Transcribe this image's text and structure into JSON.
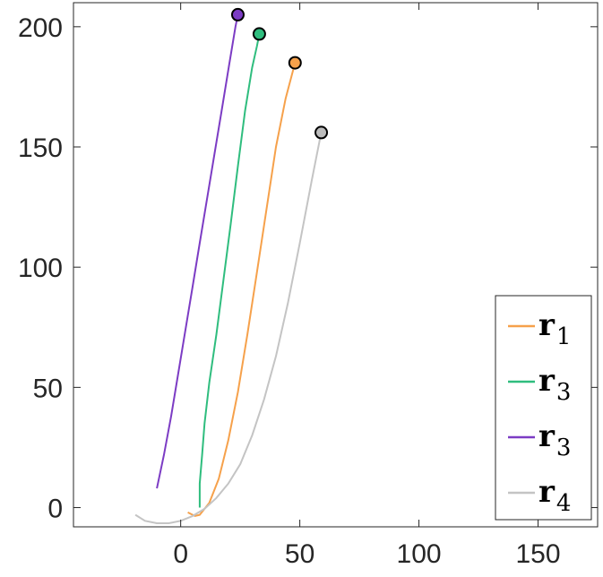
{
  "chart_data": {
    "type": "line",
    "title": "",
    "xlabel": "",
    "ylabel": "",
    "xlim": [
      -45,
      175
    ],
    "ylim": [
      -8,
      210
    ],
    "xticks": [
      0,
      50,
      100,
      150
    ],
    "yticks": [
      0,
      50,
      100,
      150,
      200
    ],
    "grid": false,
    "legend_position": "bottom-right",
    "series": [
      {
        "name": "r",
        "subscript": "1",
        "color": "#f6a14b",
        "x": [
          3,
          5,
          6,
          8,
          12,
          16,
          20,
          24,
          28,
          32,
          36,
          40,
          44,
          48
        ],
        "y": [
          -2,
          -3,
          -3.5,
          -3,
          2,
          12,
          28,
          48,
          72,
          98,
          124,
          150,
          170,
          185
        ]
      },
      {
        "name": "r",
        "subscript": "3",
        "color": "#2fbd7e",
        "x": [
          8,
          8,
          9,
          10,
          12,
          15,
          18,
          21,
          24,
          27,
          30,
          32,
          33
        ],
        "y": [
          0,
          10,
          22,
          35,
          52,
          72,
          95,
          118,
          142,
          165,
          183,
          192,
          197
        ]
      },
      {
        "name": "r",
        "subscript": "3",
        "color": "#7c3cc4",
        "x": [
          -10,
          -7,
          -4,
          -1,
          2,
          5,
          8,
          11,
          14,
          17,
          20,
          23,
          24
        ],
        "y": [
          8,
          22,
          38,
          56,
          74,
          92,
          110,
          128,
          146,
          164,
          182,
          200,
          205
        ]
      },
      {
        "name": "r",
        "subscript": "4",
        "color": "#c4c4c4",
        "x": [
          -19,
          -15,
          -10,
          -5,
          0,
          5,
          10,
          15,
          20,
          25,
          30,
          35,
          40,
          45,
          50,
          55,
          59
        ],
        "y": [
          -3,
          -5.5,
          -6.5,
          -6.5,
          -5.5,
          -3.5,
          -0.5,
          4,
          10,
          18,
          30,
          45,
          63,
          85,
          110,
          136,
          156
        ]
      }
    ],
    "endpoints": [
      {
        "x": 48,
        "y": 185,
        "color": "#f6a14b"
      },
      {
        "x": 33,
        "y": 197,
        "color": "#2fbd7e"
      },
      {
        "x": 24,
        "y": 205,
        "color": "#7c3cc4"
      },
      {
        "x": 59,
        "y": 156,
        "color": "#bdbdbd"
      }
    ]
  }
}
